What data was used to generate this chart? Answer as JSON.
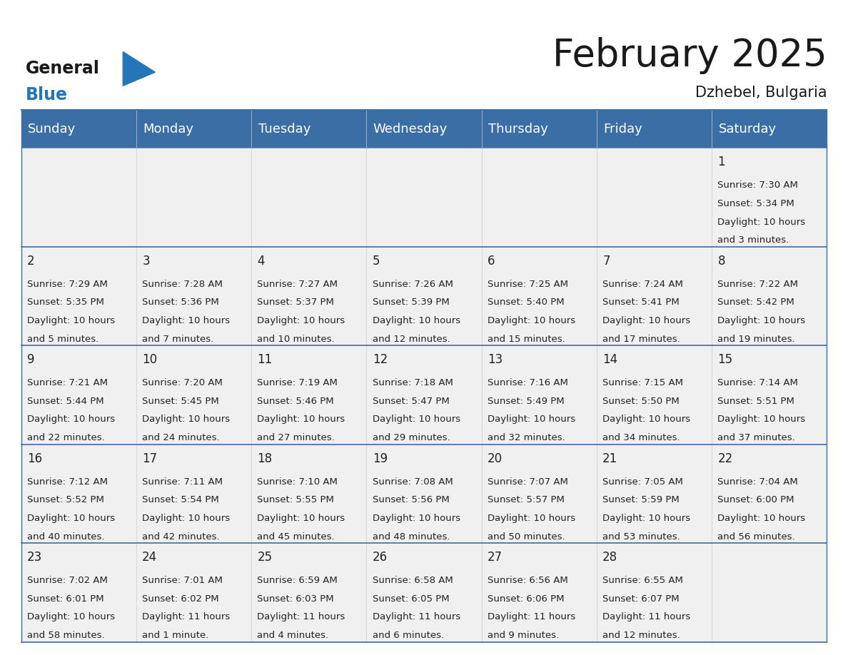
{
  "title": "February 2025",
  "subtitle": "Dzhebel, Bulgaria",
  "header_color": "#3a6ea5",
  "header_text_color": "#ffffff",
  "cell_bg_color": "#f0f0f0",
  "border_color": "#3a6ea5",
  "separator_color": "#3a6ea5",
  "vert_line_color": "#cccccc",
  "text_color": "#222222",
  "day_headers": [
    "Sunday",
    "Monday",
    "Tuesday",
    "Wednesday",
    "Thursday",
    "Friday",
    "Saturday"
  ],
  "title_fontsize": 38,
  "subtitle_fontsize": 15,
  "header_fontsize": 13,
  "day_num_fontsize": 12,
  "info_fontsize": 9.5,
  "logo_general_fontsize": 17,
  "logo_blue_fontsize": 17,
  "days": [
    {
      "day": 1,
      "col": 6,
      "row": 0,
      "sunrise": "7:30 AM",
      "sunset": "5:34 PM",
      "daylight_hours": 10,
      "daylight_minutes": 3
    },
    {
      "day": 2,
      "col": 0,
      "row": 1,
      "sunrise": "7:29 AM",
      "sunset": "5:35 PM",
      "daylight_hours": 10,
      "daylight_minutes": 5
    },
    {
      "day": 3,
      "col": 1,
      "row": 1,
      "sunrise": "7:28 AM",
      "sunset": "5:36 PM",
      "daylight_hours": 10,
      "daylight_minutes": 7
    },
    {
      "day": 4,
      "col": 2,
      "row": 1,
      "sunrise": "7:27 AM",
      "sunset": "5:37 PM",
      "daylight_hours": 10,
      "daylight_minutes": 10
    },
    {
      "day": 5,
      "col": 3,
      "row": 1,
      "sunrise": "7:26 AM",
      "sunset": "5:39 PM",
      "daylight_hours": 10,
      "daylight_minutes": 12
    },
    {
      "day": 6,
      "col": 4,
      "row": 1,
      "sunrise": "7:25 AM",
      "sunset": "5:40 PM",
      "daylight_hours": 10,
      "daylight_minutes": 15
    },
    {
      "day": 7,
      "col": 5,
      "row": 1,
      "sunrise": "7:24 AM",
      "sunset": "5:41 PM",
      "daylight_hours": 10,
      "daylight_minutes": 17
    },
    {
      "day": 8,
      "col": 6,
      "row": 1,
      "sunrise": "7:22 AM",
      "sunset": "5:42 PM",
      "daylight_hours": 10,
      "daylight_minutes": 19
    },
    {
      "day": 9,
      "col": 0,
      "row": 2,
      "sunrise": "7:21 AM",
      "sunset": "5:44 PM",
      "daylight_hours": 10,
      "daylight_minutes": 22
    },
    {
      "day": 10,
      "col": 1,
      "row": 2,
      "sunrise": "7:20 AM",
      "sunset": "5:45 PM",
      "daylight_hours": 10,
      "daylight_minutes": 24
    },
    {
      "day": 11,
      "col": 2,
      "row": 2,
      "sunrise": "7:19 AM",
      "sunset": "5:46 PM",
      "daylight_hours": 10,
      "daylight_minutes": 27
    },
    {
      "day": 12,
      "col": 3,
      "row": 2,
      "sunrise": "7:18 AM",
      "sunset": "5:47 PM",
      "daylight_hours": 10,
      "daylight_minutes": 29
    },
    {
      "day": 13,
      "col": 4,
      "row": 2,
      "sunrise": "7:16 AM",
      "sunset": "5:49 PM",
      "daylight_hours": 10,
      "daylight_minutes": 32
    },
    {
      "day": 14,
      "col": 5,
      "row": 2,
      "sunrise": "7:15 AM",
      "sunset": "5:50 PM",
      "daylight_hours": 10,
      "daylight_minutes": 34
    },
    {
      "day": 15,
      "col": 6,
      "row": 2,
      "sunrise": "7:14 AM",
      "sunset": "5:51 PM",
      "daylight_hours": 10,
      "daylight_minutes": 37
    },
    {
      "day": 16,
      "col": 0,
      "row": 3,
      "sunrise": "7:12 AM",
      "sunset": "5:52 PM",
      "daylight_hours": 10,
      "daylight_minutes": 40
    },
    {
      "day": 17,
      "col": 1,
      "row": 3,
      "sunrise": "7:11 AM",
      "sunset": "5:54 PM",
      "daylight_hours": 10,
      "daylight_minutes": 42
    },
    {
      "day": 18,
      "col": 2,
      "row": 3,
      "sunrise": "7:10 AM",
      "sunset": "5:55 PM",
      "daylight_hours": 10,
      "daylight_minutes": 45
    },
    {
      "day": 19,
      "col": 3,
      "row": 3,
      "sunrise": "7:08 AM",
      "sunset": "5:56 PM",
      "daylight_hours": 10,
      "daylight_minutes": 48
    },
    {
      "day": 20,
      "col": 4,
      "row": 3,
      "sunrise": "7:07 AM",
      "sunset": "5:57 PM",
      "daylight_hours": 10,
      "daylight_minutes": 50
    },
    {
      "day": 21,
      "col": 5,
      "row": 3,
      "sunrise": "7:05 AM",
      "sunset": "5:59 PM",
      "daylight_hours": 10,
      "daylight_minutes": 53
    },
    {
      "day": 22,
      "col": 6,
      "row": 3,
      "sunrise": "7:04 AM",
      "sunset": "6:00 PM",
      "daylight_hours": 10,
      "daylight_minutes": 56
    },
    {
      "day": 23,
      "col": 0,
      "row": 4,
      "sunrise": "7:02 AM",
      "sunset": "6:01 PM",
      "daylight_hours": 10,
      "daylight_minutes": 58
    },
    {
      "day": 24,
      "col": 1,
      "row": 4,
      "sunrise": "7:01 AM",
      "sunset": "6:02 PM",
      "daylight_hours": 11,
      "daylight_minutes": 1
    },
    {
      "day": 25,
      "col": 2,
      "row": 4,
      "sunrise": "6:59 AM",
      "sunset": "6:03 PM",
      "daylight_hours": 11,
      "daylight_minutes": 4
    },
    {
      "day": 26,
      "col": 3,
      "row": 4,
      "sunrise": "6:58 AM",
      "sunset": "6:05 PM",
      "daylight_hours": 11,
      "daylight_minutes": 6
    },
    {
      "day": 27,
      "col": 4,
      "row": 4,
      "sunrise": "6:56 AM",
      "sunset": "6:06 PM",
      "daylight_hours": 11,
      "daylight_minutes": 9
    },
    {
      "day": 28,
      "col": 5,
      "row": 4,
      "sunrise": "6:55 AM",
      "sunset": "6:07 PM",
      "daylight_hours": 11,
      "daylight_minutes": 12
    }
  ]
}
